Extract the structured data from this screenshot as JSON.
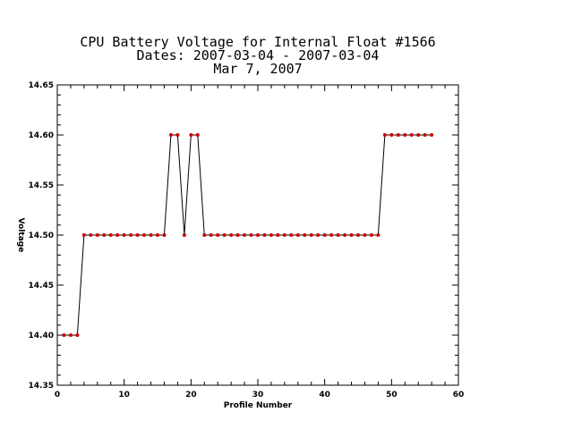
{
  "chart_data": {
    "type": "line",
    "title": [
      "CPU Battery Voltage for Internal Float #1566",
      "Dates:  2007-03-04 -  2007-03-04",
      "Mar  7, 2007"
    ],
    "xlabel": "Profile Number",
    "ylabel": "Voltage",
    "xlim": [
      0,
      60
    ],
    "ylim": [
      14.35,
      14.65
    ],
    "xticks": [
      0,
      10,
      20,
      30,
      40,
      50,
      60
    ],
    "xtick_labels": [
      "0",
      "10",
      "20",
      "30",
      "40",
      "50",
      "60"
    ],
    "yticks": [
      14.35,
      14.4,
      14.45,
      14.5,
      14.55,
      14.6,
      14.65
    ],
    "ytick_labels": [
      "14.35",
      "14.40",
      "14.45",
      "14.50",
      "14.55",
      "14.60",
      "14.65"
    ],
    "grid": false,
    "line_color": "#000000",
    "marker_color": "#cc0000",
    "series": [
      {
        "x": [
          1,
          2,
          3,
          4,
          5,
          6,
          7,
          8,
          9,
          10,
          11,
          12,
          13,
          14,
          15,
          16,
          17,
          18,
          19,
          20,
          21,
          22,
          23,
          24,
          25,
          26,
          27,
          28,
          29,
          30,
          31,
          32,
          33,
          34,
          35,
          36,
          37,
          38,
          39,
          40,
          41,
          42,
          43,
          44,
          45,
          46,
          47,
          48,
          49,
          50,
          51,
          52,
          53,
          54,
          55,
          56
        ],
        "y": [
          14.4,
          14.4,
          14.4,
          14.5,
          14.5,
          14.5,
          14.5,
          14.5,
          14.5,
          14.5,
          14.5,
          14.5,
          14.5,
          14.5,
          14.5,
          14.5,
          14.6,
          14.6,
          14.5,
          14.6,
          14.6,
          14.5,
          14.5,
          14.5,
          14.5,
          14.5,
          14.5,
          14.5,
          14.5,
          14.5,
          14.5,
          14.5,
          14.5,
          14.5,
          14.5,
          14.5,
          14.5,
          14.5,
          14.5,
          14.5,
          14.5,
          14.5,
          14.5,
          14.5,
          14.5,
          14.5,
          14.5,
          14.5,
          14.6,
          14.6,
          14.6,
          14.6,
          14.6,
          14.6,
          14.6,
          14.6
        ]
      }
    ]
  }
}
